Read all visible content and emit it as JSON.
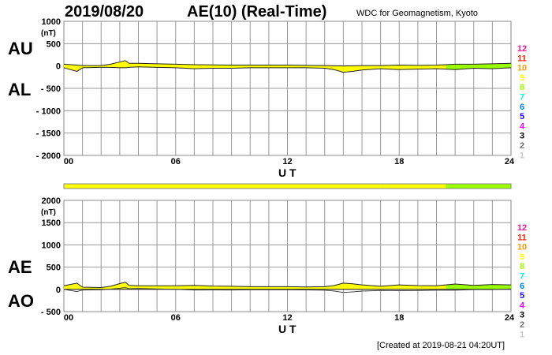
{
  "header": {
    "date": "2019/08/20",
    "title": "AE(10) (Real-Time)",
    "source": "WDC for Geomagnetism, Kyoto"
  },
  "footer": {
    "created": "[Created at 2019-08-21 04:20UT]"
  },
  "station_legend": {
    "labels": [
      "12",
      "11",
      "10",
      "9",
      "8",
      "7",
      "6",
      "5",
      "4",
      "3",
      "2",
      "1"
    ],
    "colors": [
      "#ff1493",
      "#ff2000",
      "#ff9900",
      "#ffff00",
      "#99ff00",
      "#00ffcc",
      "#0080ff",
      "#2000ff",
      "#ff00ff",
      "#000000",
      "#707070",
      "#c8c8c8"
    ]
  },
  "chart_data": [
    {
      "type": "area",
      "name": "AU/AL",
      "labels_left": [
        "AU",
        "AL"
      ],
      "unit": "(nT)",
      "xlabel": "U T",
      "ylim": [
        -2000,
        1000
      ],
      "yticks": [
        "1000",
        "500",
        "0",
        "- 500",
        "- 1000",
        "- 1500",
        "- 2000"
      ],
      "xticks": [
        "00",
        "06",
        "12",
        "18",
        "24"
      ],
      "grid": true,
      "x": [
        0,
        0.7,
        1,
        2,
        2.5,
        3,
        3.3,
        3.5,
        4,
        5,
        6,
        7,
        8,
        9,
        10,
        11,
        12,
        13,
        14,
        14.5,
        15,
        15.5,
        16,
        17,
        18,
        19,
        20,
        20.5,
        21,
        22,
        23,
        24
      ],
      "AU": [
        40,
        20,
        10,
        10,
        40,
        90,
        120,
        60,
        60,
        50,
        40,
        30,
        25,
        20,
        20,
        20,
        20,
        15,
        10,
        5,
        0,
        5,
        10,
        10,
        20,
        15,
        20,
        30,
        40,
        40,
        50,
        60
      ],
      "AL": [
        -40,
        -120,
        -40,
        -30,
        -30,
        -40,
        -40,
        -30,
        -20,
        -30,
        -40,
        -60,
        -50,
        -50,
        -40,
        -40,
        -40,
        -40,
        -50,
        -80,
        -140,
        -120,
        -90,
        -60,
        -80,
        -70,
        -60,
        -70,
        -80,
        -50,
        -60,
        -40
      ]
    },
    {
      "type": "area",
      "name": "AE/AO",
      "labels_left": [
        "AE",
        "AO"
      ],
      "unit": "(nT)",
      "xlabel": "U T",
      "ylim": [
        -500,
        2000
      ],
      "yticks": [
        "2000",
        "1500",
        "1000",
        "500",
        "0",
        "- 500"
      ],
      "xticks": [
        "00",
        "06",
        "12",
        "18",
        "24"
      ],
      "grid": true
    }
  ],
  "station_count": {
    "x": [
      0,
      17,
      17.3,
      20.5,
      24
    ],
    "count": [
      9,
      9,
      9,
      8,
      8
    ]
  }
}
